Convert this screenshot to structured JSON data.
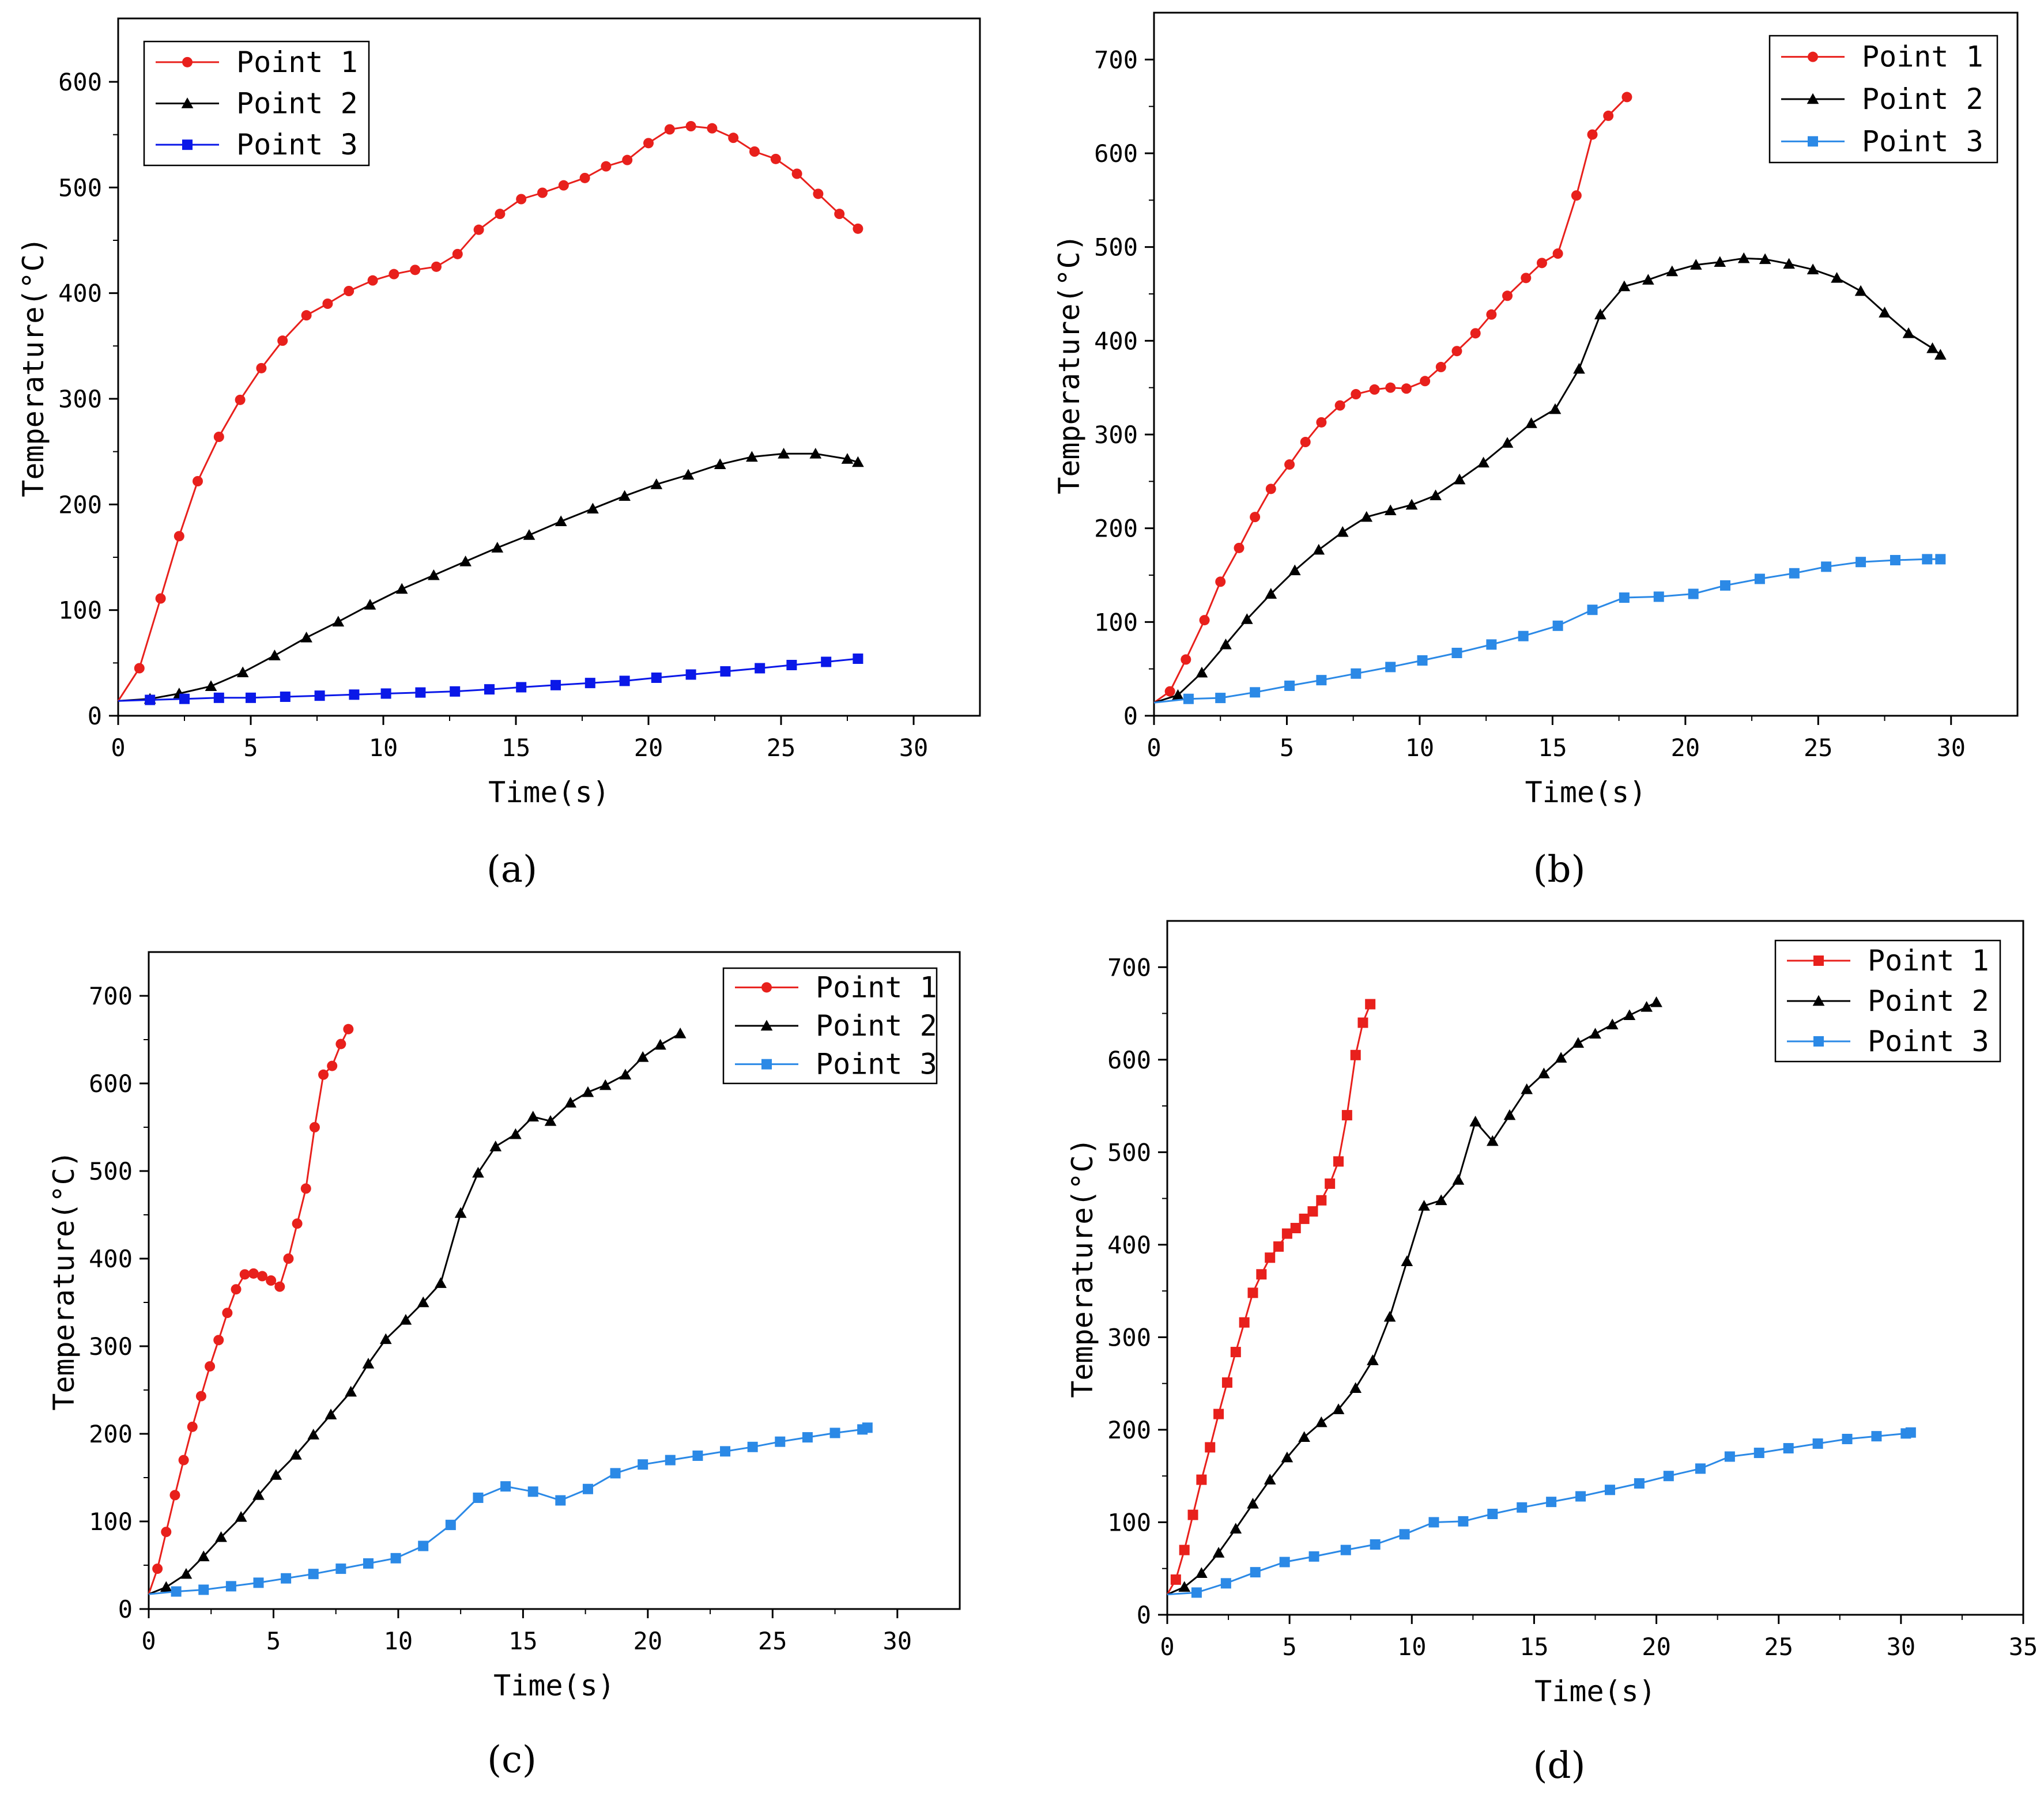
{
  "chart_data": [
    {
      "panel": "a",
      "caption": "(a)",
      "type": "line",
      "xlabel": "Time(s)",
      "ylabel": "Temperature(°C)",
      "xlim": [
        0,
        32.5
      ],
      "ylim": [
        0,
        660
      ],
      "xticks": [
        0,
        5,
        10,
        15,
        20,
        25,
        30
      ],
      "yticks": [
        0,
        100,
        200,
        300,
        400,
        500,
        600
      ],
      "legend_position": "top-left",
      "series": [
        {
          "name": "Point 1",
          "color": "#e8201c",
          "marker": "circle",
          "x": [
            0,
            0.8,
            1.6,
            2.3,
            3.0,
            3.8,
            4.6,
            5.4,
            6.2,
            7.1,
            7.9,
            8.7,
            9.6,
            10.4,
            11.2,
            12.0,
            12.8,
            13.6,
            14.4,
            15.2,
            16.0,
            16.8,
            17.6,
            18.4,
            19.2,
            20.0,
            20.8,
            21.6,
            22.4,
            23.2,
            24.0,
            24.8,
            25.6,
            26.4,
            27.2,
            27.9
          ],
          "y": [
            14,
            45,
            111,
            170,
            222,
            264,
            299,
            329,
            355,
            379,
            390,
            402,
            412,
            418,
            422,
            425,
            437,
            460,
            475,
            489,
            495,
            502,
            509,
            520,
            526,
            542,
            555,
            558,
            556,
            547,
            534,
            527,
            513,
            494,
            475,
            461
          ]
        },
        {
          "name": "Point 2",
          "color": "#000000",
          "marker": "triangle",
          "x": [
            0,
            1.2,
            2.3,
            3.5,
            4.7,
            5.9,
            7.1,
            8.3,
            9.5,
            10.7,
            11.9,
            13.1,
            14.3,
            15.5,
            16.7,
            17.9,
            19.1,
            20.3,
            21.5,
            22.7,
            23.9,
            25.1,
            26.3,
            27.5,
            27.9
          ],
          "y": [
            14,
            16,
            21,
            28,
            41,
            57,
            74,
            89,
            105,
            120,
            133,
            146,
            159,
            171,
            184,
            196,
            208,
            219,
            228,
            238,
            245,
            248,
            248,
            243,
            240
          ]
        },
        {
          "name": "Point 3",
          "color": "#0a18e8",
          "marker": "square",
          "x": [
            0,
            1.2,
            2.5,
            3.8,
            5.0,
            6.3,
            7.6,
            8.9,
            10.1,
            11.4,
            12.7,
            14.0,
            15.2,
            16.5,
            17.8,
            19.1,
            20.3,
            21.6,
            22.9,
            24.2,
            25.4,
            26.7,
            27.9
          ],
          "y": [
            14,
            15,
            16,
            17,
            17,
            18,
            19,
            20,
            21,
            22,
            23,
            25,
            27,
            29,
            31,
            33,
            36,
            39,
            42,
            45,
            48,
            51,
            54
          ]
        }
      ]
    },
    {
      "panel": "b",
      "caption": "(b)",
      "type": "line",
      "xlabel": "Time(s)",
      "ylabel": "Temperature(°C)",
      "xlim": [
        0,
        32.5
      ],
      "ylim": [
        0,
        750
      ],
      "xticks": [
        0,
        5,
        10,
        15,
        20,
        25,
        30
      ],
      "yticks": [
        0,
        100,
        200,
        300,
        400,
        500,
        600,
        700
      ],
      "legend_position": "top-right",
      "series": [
        {
          "name": "Point 1",
          "color": "#e8201c",
          "marker": "circle",
          "x": [
            0,
            0.6,
            1.2,
            1.9,
            2.5,
            3.2,
            3.8,
            4.4,
            5.1,
            5.7,
            6.3,
            7.0,
            7.6,
            8.3,
            8.9,
            9.5,
            10.2,
            10.8,
            11.4,
            12.1,
            12.7,
            13.3,
            14.0,
            14.6,
            15.2,
            15.9,
            16.5,
            17.1,
            17.8
          ],
          "y": [
            14,
            26,
            60,
            102,
            143,
            179,
            212,
            242,
            268,
            292,
            313,
            331,
            343,
            348,
            350,
            349,
            357,
            372,
            389,
            408,
            428,
            448,
            467,
            483,
            493,
            555,
            620,
            640,
            660
          ]
        },
        {
          "name": "Point 2",
          "color": "#000000",
          "marker": "triangle",
          "x": [
            0,
            0.9,
            1.8,
            2.7,
            3.5,
            4.4,
            5.3,
            6.2,
            7.1,
            8.0,
            8.9,
            9.7,
            10.6,
            11.5,
            12.4,
            13.3,
            14.2,
            15.1,
            16.0,
            16.8,
            17.7,
            18.6,
            19.5,
            20.4,
            21.3,
            22.2,
            23.0,
            23.9,
            24.8,
            25.7,
            26.6,
            27.5,
            28.4,
            29.3,
            29.6
          ],
          "y": [
            14,
            22,
            46,
            76,
            103,
            130,
            155,
            177,
            196,
            212,
            219,
            225,
            235,
            252,
            270,
            291,
            312,
            327,
            370,
            428,
            458,
            465,
            474,
            481,
            484,
            488,
            487,
            482,
            476,
            467,
            453,
            430,
            408,
            392,
            385
          ]
        },
        {
          "name": "Point 3",
          "color": "#2b89e6",
          "marker": "square",
          "x": [
            0,
            1.3,
            2.5,
            3.8,
            5.1,
            6.3,
            7.6,
            8.9,
            10.1,
            11.4,
            12.7,
            13.9,
            15.2,
            16.5,
            17.7,
            19.0,
            20.3,
            21.5,
            22.8,
            24.1,
            25.3,
            26.6,
            27.9,
            29.1,
            29.6
          ],
          "y": [
            14,
            18,
            19,
            25,
            32,
            38,
            45,
            52,
            59,
            67,
            76,
            85,
            96,
            113,
            126,
            127,
            130,
            139,
            146,
            152,
            159,
            164,
            166,
            167,
            167
          ]
        }
      ]
    },
    {
      "panel": "c",
      "caption": "(c)",
      "type": "line",
      "xlabel": "Time(s)",
      "ylabel": "Temperature(°C)",
      "xlim": [
        0,
        32.5
      ],
      "ylim": [
        0,
        750
      ],
      "xticks": [
        0,
        5,
        10,
        15,
        20,
        25,
        30
      ],
      "yticks": [
        0,
        100,
        200,
        300,
        400,
        500,
        600,
        700
      ],
      "legend_position": "top-right",
      "series": [
        {
          "name": "Point 1",
          "color": "#e8201c",
          "marker": "circle",
          "x": [
            0,
            0.35,
            0.7,
            1.05,
            1.4,
            1.75,
            2.1,
            2.45,
            2.8,
            3.15,
            3.5,
            3.85,
            4.2,
            4.55,
            4.9,
            5.25,
            5.6,
            5.95,
            6.3,
            6.65,
            7.0,
            7.35,
            7.7,
            8.0
          ],
          "y": [
            17,
            46,
            88,
            130,
            170,
            208,
            243,
            277,
            307,
            338,
            365,
            382,
            383,
            380,
            375,
            368,
            400,
            440,
            480,
            550,
            610,
            620,
            645,
            662
          ]
        },
        {
          "name": "Point 2",
          "color": "#000000",
          "marker": "triangle",
          "x": [
            0,
            0.7,
            1.5,
            2.2,
            2.9,
            3.7,
            4.4,
            5.1,
            5.9,
            6.6,
            7.3,
            8.1,
            8.8,
            9.5,
            10.3,
            11.0,
            11.7,
            12.5,
            13.2,
            13.9,
            14.7,
            15.4,
            16.1,
            16.9,
            17.6,
            18.3,
            19.1,
            19.8,
            20.5,
            21.3
          ],
          "y": [
            17,
            25,
            40,
            60,
            82,
            105,
            130,
            153,
            176,
            199,
            222,
            248,
            280,
            308,
            330,
            350,
            372,
            452,
            498,
            528,
            542,
            562,
            557,
            578,
            590,
            598,
            610,
            630,
            644,
            657
          ]
        },
        {
          "name": "Point 3",
          "color": "#2b89e6",
          "marker": "square",
          "x": [
            0,
            1.1,
            2.2,
            3.3,
            4.4,
            5.5,
            6.6,
            7.7,
            8.8,
            9.9,
            11.0,
            12.1,
            13.2,
            14.3,
            15.4,
            16.5,
            17.6,
            18.7,
            19.8,
            20.9,
            22.0,
            23.1,
            24.2,
            25.3,
            26.4,
            27.5,
            28.6,
            28.8
          ],
          "y": [
            17,
            20,
            22,
            26,
            30,
            35,
            40,
            46,
            52,
            58,
            72,
            96,
            127,
            140,
            134,
            124,
            137,
            155,
            165,
            170,
            175,
            180,
            185,
            191,
            196,
            201,
            205,
            207
          ]
        }
      ]
    },
    {
      "panel": "d",
      "caption": "(d)",
      "type": "line",
      "xlabel": "Time(s)",
      "ylabel": "Temperature(°C)",
      "xlim": [
        0,
        35
      ],
      "ylim": [
        0,
        750
      ],
      "xticks": [
        0,
        5,
        10,
        15,
        20,
        25,
        30,
        35
      ],
      "yticks": [
        0,
        100,
        200,
        300,
        400,
        500,
        600,
        700
      ],
      "legend_position": "top-right",
      "series": [
        {
          "name": "Point 1",
          "color": "#e8201c",
          "marker": "square",
          "x": [
            0,
            0.35,
            0.7,
            1.05,
            1.4,
            1.75,
            2.1,
            2.45,
            2.8,
            3.15,
            3.5,
            3.85,
            4.2,
            4.55,
            4.9,
            5.25,
            5.6,
            5.95,
            6.3,
            6.65,
            7.0,
            7.35,
            7.7,
            8.0,
            8.3
          ],
          "y": [
            22,
            38,
            70,
            108,
            146,
            181,
            217,
            251,
            284,
            316,
            348,
            368,
            386,
            398,
            412,
            418,
            428,
            436,
            448,
            466,
            490,
            540,
            605,
            640,
            660
          ]
        },
        {
          "name": "Point 2",
          "color": "#000000",
          "marker": "triangle",
          "x": [
            0,
            0.7,
            1.4,
            2.1,
            2.8,
            3.5,
            4.2,
            4.9,
            5.6,
            6.3,
            7.0,
            7.7,
            8.4,
            9.1,
            9.8,
            10.5,
            11.2,
            11.9,
            12.6,
            13.3,
            14.0,
            14.7,
            15.4,
            16.1,
            16.8,
            17.5,
            18.2,
            18.9,
            19.6,
            20.0
          ],
          "y": [
            22,
            30,
            45,
            67,
            93,
            120,
            146,
            170,
            192,
            208,
            222,
            245,
            275,
            322,
            382,
            442,
            448,
            470,
            533,
            512,
            540,
            568,
            585,
            602,
            618,
            628,
            638,
            648,
            657,
            662
          ]
        },
        {
          "name": "Point 3",
          "color": "#2b89e6",
          "marker": "square",
          "x": [
            0,
            1.2,
            2.4,
            3.6,
            4.8,
            6.0,
            7.3,
            8.5,
            9.7,
            10.9,
            12.1,
            13.3,
            14.5,
            15.7,
            16.9,
            18.1,
            19.3,
            20.5,
            21.8,
            23.0,
            24.2,
            25.4,
            26.6,
            27.8,
            29.0,
            30.2,
            30.4
          ],
          "y": [
            22,
            24,
            34,
            46,
            57,
            63,
            70,
            76,
            87,
            100,
            101,
            109,
            116,
            122,
            128,
            135,
            142,
            150,
            158,
            171,
            175,
            180,
            185,
            190,
            193,
            196,
            197
          ]
        }
      ]
    }
  ]
}
